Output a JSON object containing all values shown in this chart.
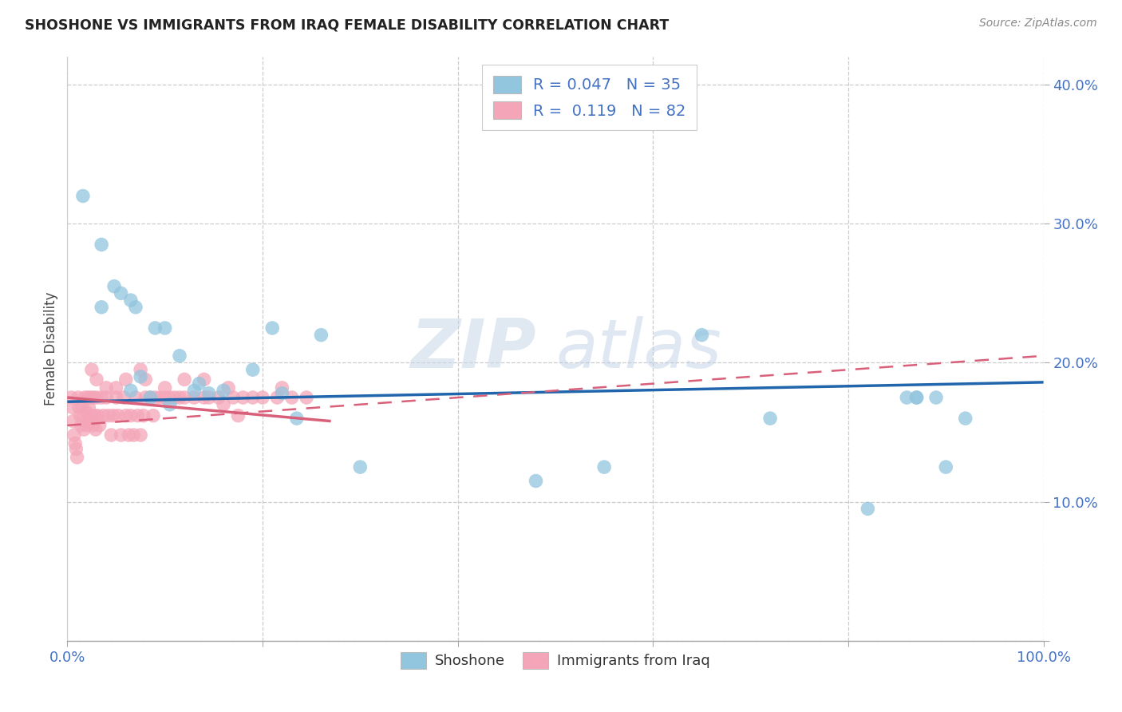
{
  "title": "SHOSHONE VS IMMIGRANTS FROM IRAQ FEMALE DISABILITY CORRELATION CHART",
  "source": "Source: ZipAtlas.com",
  "ylabel": "Female Disability",
  "xlim": [
    0.0,
    1.0
  ],
  "ylim": [
    0.0,
    0.42
  ],
  "r_shoshone": 0.047,
  "n_shoshone": 35,
  "r_iraq": 0.119,
  "n_iraq": 82,
  "shoshone_color": "#92c5de",
  "iraq_color": "#f4a6b8",
  "shoshone_line_color": "#2166ac",
  "iraq_line_color": "#d9607a",
  "watermark_zip": "ZIP",
  "watermark_atlas": "atlas",
  "background_color": "#ffffff",
  "shoshone_x": [
    0.016,
    0.035,
    0.048,
    0.055,
    0.065,
    0.07,
    0.075,
    0.085,
    0.09,
    0.1,
    0.115,
    0.13,
    0.145,
    0.16,
    0.19,
    0.21,
    0.235,
    0.26,
    0.3,
    0.48,
    0.55,
    0.65,
    0.72,
    0.82,
    0.86,
    0.87,
    0.87,
    0.89,
    0.9,
    0.92,
    0.035,
    0.065,
    0.105,
    0.135,
    0.22
  ],
  "shoshone_y": [
    0.32,
    0.285,
    0.255,
    0.25,
    0.245,
    0.24,
    0.19,
    0.175,
    0.225,
    0.225,
    0.205,
    0.18,
    0.178,
    0.18,
    0.195,
    0.225,
    0.16,
    0.22,
    0.125,
    0.115,
    0.125,
    0.22,
    0.16,
    0.095,
    0.175,
    0.175,
    0.175,
    0.175,
    0.125,
    0.16,
    0.24,
    0.18,
    0.17,
    0.185,
    0.178
  ],
  "iraq_x": [
    0.004,
    0.005,
    0.006,
    0.007,
    0.008,
    0.009,
    0.01,
    0.011,
    0.012,
    0.013,
    0.014,
    0.015,
    0.016,
    0.017,
    0.018,
    0.019,
    0.02,
    0.021,
    0.022,
    0.023,
    0.024,
    0.025,
    0.026,
    0.027,
    0.028,
    0.029,
    0.03,
    0.031,
    0.033,
    0.035,
    0.037,
    0.04,
    0.042,
    0.045,
    0.047,
    0.05,
    0.052,
    0.055,
    0.058,
    0.06,
    0.063,
    0.065,
    0.068,
    0.07,
    0.072,
    0.075,
    0.078,
    0.08,
    0.085,
    0.088,
    0.09,
    0.095,
    0.1,
    0.105,
    0.11,
    0.115,
    0.12,
    0.13,
    0.14,
    0.145,
    0.155,
    0.16,
    0.17,
    0.175,
    0.18,
    0.19,
    0.2,
    0.215,
    0.23,
    0.245,
    0.025,
    0.03,
    0.04,
    0.05,
    0.06,
    0.075,
    0.08,
    0.1,
    0.12,
    0.14,
    0.165,
    0.22
  ],
  "iraq_y": [
    0.175,
    0.168,
    0.158,
    0.148,
    0.142,
    0.138,
    0.132,
    0.175,
    0.168,
    0.162,
    0.155,
    0.17,
    0.162,
    0.152,
    0.175,
    0.165,
    0.155,
    0.175,
    0.168,
    0.158,
    0.175,
    0.162,
    0.155,
    0.175,
    0.162,
    0.152,
    0.175,
    0.162,
    0.155,
    0.175,
    0.162,
    0.175,
    0.162,
    0.148,
    0.162,
    0.175,
    0.162,
    0.148,
    0.175,
    0.162,
    0.148,
    0.162,
    0.148,
    0.175,
    0.162,
    0.148,
    0.162,
    0.175,
    0.175,
    0.162,
    0.175,
    0.175,
    0.175,
    0.175,
    0.175,
    0.175,
    0.175,
    0.175,
    0.175,
    0.175,
    0.175,
    0.17,
    0.175,
    0.162,
    0.175,
    0.175,
    0.175,
    0.175,
    0.175,
    0.175,
    0.195,
    0.188,
    0.182,
    0.182,
    0.188,
    0.195,
    0.188,
    0.182,
    0.188,
    0.188,
    0.182,
    0.182
  ],
  "shoshone_trend": [
    0.0,
    1.0,
    0.172,
    0.186
  ],
  "iraq_solid_trend": [
    0.0,
    0.27,
    0.175,
    0.158
  ],
  "iraq_dashed_trend": [
    0.0,
    1.0,
    0.155,
    0.205
  ]
}
